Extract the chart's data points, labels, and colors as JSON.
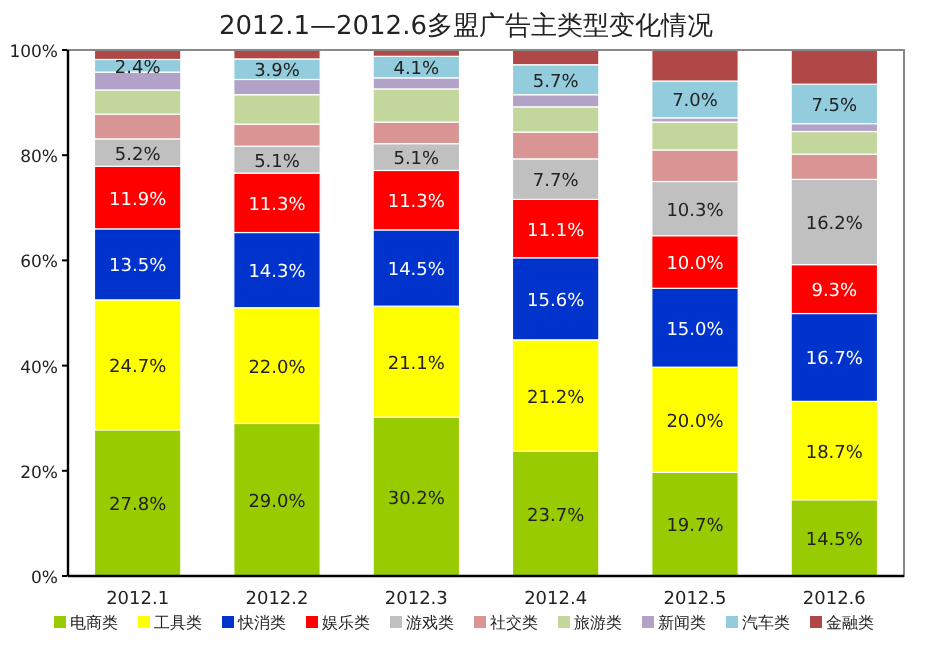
{
  "chart_data": {
    "type": "bar",
    "stacked": true,
    "title": "2012.1—2012.6多盟广告主类型变化情况",
    "categories": [
      "2012.1",
      "2012.2",
      "2012.3",
      "2012.4",
      "2012.5",
      "2012.6"
    ],
    "ylim": [
      0,
      100
    ],
    "yticks": [
      {
        "value": 0,
        "label": "0%"
      },
      {
        "value": 20,
        "label": "20%"
      },
      {
        "value": 40,
        "label": "40%"
      },
      {
        "value": 60,
        "label": "60%"
      },
      {
        "value": 80,
        "label": "80%"
      },
      {
        "value": 100,
        "label": "100%"
      }
    ],
    "grid": false,
    "legend": "bottom",
    "series": [
      {
        "name": "电商类",
        "color": "#99cc00",
        "values": [
          27.8,
          29.0,
          30.2,
          23.7,
          19.7,
          14.5
        ],
        "value_labels": [
          "27.8%",
          "29.0%",
          "30.2%",
          "23.7%",
          "19.7%",
          "14.5%"
        ]
      },
      {
        "name": "工具类",
        "color": "#ffff00",
        "values": [
          24.7,
          22.0,
          21.1,
          21.2,
          20.0,
          18.7
        ],
        "value_labels": [
          "24.7%",
          "22.0%",
          "21.1%",
          "21.2%",
          "20.0%",
          "18.7%"
        ]
      },
      {
        "name": "快消类",
        "color": "#0033cc",
        "values": [
          13.5,
          14.3,
          14.5,
          15.6,
          15.0,
          16.7
        ],
        "value_labels": [
          "13.5%",
          "14.3%",
          "14.5%",
          "15.6%",
          "15.0%",
          "16.7%"
        ]
      },
      {
        "name": "娱乐类",
        "color": "#ff0000",
        "values": [
          11.9,
          11.3,
          11.3,
          11.1,
          10.0,
          9.3
        ],
        "value_labels": [
          "11.9%",
          "11.3%",
          "11.3%",
          "11.1%",
          "10.0%",
          "9.3%"
        ]
      },
      {
        "name": "游戏类",
        "color": "#c0c0c0",
        "values": [
          5.2,
          5.1,
          5.1,
          7.7,
          10.3,
          16.2
        ],
        "value_labels": [
          "5.2%",
          "5.1%",
          "5.1%",
          "7.7%",
          "10.3%",
          "16.2%"
        ]
      },
      {
        "name": "社交类",
        "color": "#d99594",
        "values": [
          4.7,
          4.2,
          4.1,
          5.1,
          6.0,
          4.8
        ]
      },
      {
        "name": "旅游类",
        "color": "#c3d69b",
        "values": [
          4.6,
          5.6,
          6.3,
          4.8,
          5.3,
          4.3
        ]
      },
      {
        "name": "新闻类",
        "color": "#b3a2c7",
        "values": [
          3.4,
          2.9,
          2.1,
          2.3,
          0.8,
          1.5
        ]
      },
      {
        "name": "汽车类",
        "color": "#93cddd",
        "values": [
          2.4,
          3.9,
          4.1,
          5.7,
          7.0,
          7.5
        ],
        "value_labels": [
          "2.4%",
          "3.9%",
          "4.1%",
          "5.7%",
          "7.0%",
          "7.5%"
        ]
      },
      {
        "name": "金融类",
        "color": "#b04848",
        "values": [
          1.8,
          1.7,
          1.2,
          2.8,
          5.9,
          6.5
        ]
      }
    ]
  }
}
